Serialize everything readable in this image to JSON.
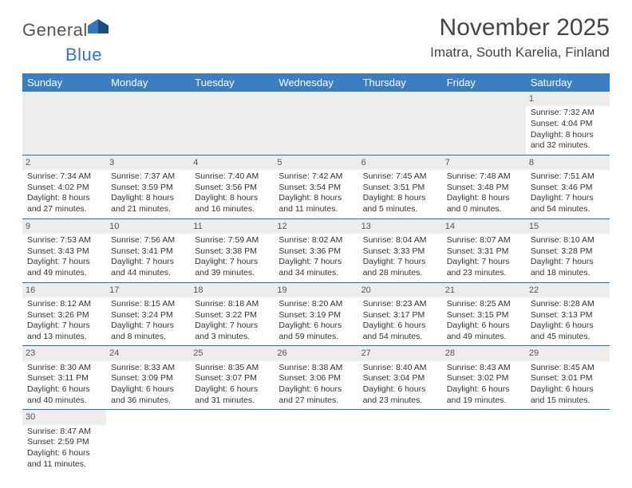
{
  "logo": {
    "text1": "General",
    "text2": "Blue"
  },
  "title": "November 2025",
  "location": "Imatra, South Karelia, Finland",
  "colors": {
    "header_bg": "#3a7fc1",
    "header_text": "#ffffff",
    "daynum_bg": "#ededed",
    "border": "#2f6ca8",
    "logo_blue": "#2f78bf"
  },
  "weekdays": [
    "Sunday",
    "Monday",
    "Tuesday",
    "Wednesday",
    "Thursday",
    "Friday",
    "Saturday"
  ],
  "weeks": [
    [
      null,
      null,
      null,
      null,
      null,
      null,
      {
        "n": "1",
        "sr": "Sunrise: 7:32 AM",
        "ss": "Sunset: 4:04 PM",
        "d1": "Daylight: 8 hours",
        "d2": "and 32 minutes."
      }
    ],
    [
      {
        "n": "2",
        "sr": "Sunrise: 7:34 AM",
        "ss": "Sunset: 4:02 PM",
        "d1": "Daylight: 8 hours",
        "d2": "and 27 minutes."
      },
      {
        "n": "3",
        "sr": "Sunrise: 7:37 AM",
        "ss": "Sunset: 3:59 PM",
        "d1": "Daylight: 8 hours",
        "d2": "and 21 minutes."
      },
      {
        "n": "4",
        "sr": "Sunrise: 7:40 AM",
        "ss": "Sunset: 3:56 PM",
        "d1": "Daylight: 8 hours",
        "d2": "and 16 minutes."
      },
      {
        "n": "5",
        "sr": "Sunrise: 7:42 AM",
        "ss": "Sunset: 3:54 PM",
        "d1": "Daylight: 8 hours",
        "d2": "and 11 minutes."
      },
      {
        "n": "6",
        "sr": "Sunrise: 7:45 AM",
        "ss": "Sunset: 3:51 PM",
        "d1": "Daylight: 8 hours",
        "d2": "and 5 minutes."
      },
      {
        "n": "7",
        "sr": "Sunrise: 7:48 AM",
        "ss": "Sunset: 3:48 PM",
        "d1": "Daylight: 8 hours",
        "d2": "and 0 minutes."
      },
      {
        "n": "8",
        "sr": "Sunrise: 7:51 AM",
        "ss": "Sunset: 3:46 PM",
        "d1": "Daylight: 7 hours",
        "d2": "and 54 minutes."
      }
    ],
    [
      {
        "n": "9",
        "sr": "Sunrise: 7:53 AM",
        "ss": "Sunset: 3:43 PM",
        "d1": "Daylight: 7 hours",
        "d2": "and 49 minutes."
      },
      {
        "n": "10",
        "sr": "Sunrise: 7:56 AM",
        "ss": "Sunset: 3:41 PM",
        "d1": "Daylight: 7 hours",
        "d2": "and 44 minutes."
      },
      {
        "n": "11",
        "sr": "Sunrise: 7:59 AM",
        "ss": "Sunset: 3:38 PM",
        "d1": "Daylight: 7 hours",
        "d2": "and 39 minutes."
      },
      {
        "n": "12",
        "sr": "Sunrise: 8:02 AM",
        "ss": "Sunset: 3:36 PM",
        "d1": "Daylight: 7 hours",
        "d2": "and 34 minutes."
      },
      {
        "n": "13",
        "sr": "Sunrise: 8:04 AM",
        "ss": "Sunset: 3:33 PM",
        "d1": "Daylight: 7 hours",
        "d2": "and 28 minutes."
      },
      {
        "n": "14",
        "sr": "Sunrise: 8:07 AM",
        "ss": "Sunset: 3:31 PM",
        "d1": "Daylight: 7 hours",
        "d2": "and 23 minutes."
      },
      {
        "n": "15",
        "sr": "Sunrise: 8:10 AM",
        "ss": "Sunset: 3:28 PM",
        "d1": "Daylight: 7 hours",
        "d2": "and 18 minutes."
      }
    ],
    [
      {
        "n": "16",
        "sr": "Sunrise: 8:12 AM",
        "ss": "Sunset: 3:26 PM",
        "d1": "Daylight: 7 hours",
        "d2": "and 13 minutes."
      },
      {
        "n": "17",
        "sr": "Sunrise: 8:15 AM",
        "ss": "Sunset: 3:24 PM",
        "d1": "Daylight: 7 hours",
        "d2": "and 8 minutes."
      },
      {
        "n": "18",
        "sr": "Sunrise: 8:18 AM",
        "ss": "Sunset: 3:22 PM",
        "d1": "Daylight: 7 hours",
        "d2": "and 3 minutes."
      },
      {
        "n": "19",
        "sr": "Sunrise: 8:20 AM",
        "ss": "Sunset: 3:19 PM",
        "d1": "Daylight: 6 hours",
        "d2": "and 59 minutes."
      },
      {
        "n": "20",
        "sr": "Sunrise: 8:23 AM",
        "ss": "Sunset: 3:17 PM",
        "d1": "Daylight: 6 hours",
        "d2": "and 54 minutes."
      },
      {
        "n": "21",
        "sr": "Sunrise: 8:25 AM",
        "ss": "Sunset: 3:15 PM",
        "d1": "Daylight: 6 hours",
        "d2": "and 49 minutes."
      },
      {
        "n": "22",
        "sr": "Sunrise: 8:28 AM",
        "ss": "Sunset: 3:13 PM",
        "d1": "Daylight: 6 hours",
        "d2": "and 45 minutes."
      }
    ],
    [
      {
        "n": "23",
        "sr": "Sunrise: 8:30 AM",
        "ss": "Sunset: 3:11 PM",
        "d1": "Daylight: 6 hours",
        "d2": "and 40 minutes."
      },
      {
        "n": "24",
        "sr": "Sunrise: 8:33 AM",
        "ss": "Sunset: 3:09 PM",
        "d1": "Daylight: 6 hours",
        "d2": "and 36 minutes."
      },
      {
        "n": "25",
        "sr": "Sunrise: 8:35 AM",
        "ss": "Sunset: 3:07 PM",
        "d1": "Daylight: 6 hours",
        "d2": "and 31 minutes."
      },
      {
        "n": "26",
        "sr": "Sunrise: 8:38 AM",
        "ss": "Sunset: 3:06 PM",
        "d1": "Daylight: 6 hours",
        "d2": "and 27 minutes."
      },
      {
        "n": "27",
        "sr": "Sunrise: 8:40 AM",
        "ss": "Sunset: 3:04 PM",
        "d1": "Daylight: 6 hours",
        "d2": "and 23 minutes."
      },
      {
        "n": "28",
        "sr": "Sunrise: 8:43 AM",
        "ss": "Sunset: 3:02 PM",
        "d1": "Daylight: 6 hours",
        "d2": "and 19 minutes."
      },
      {
        "n": "29",
        "sr": "Sunrise: 8:45 AM",
        "ss": "Sunset: 3:01 PM",
        "d1": "Daylight: 6 hours",
        "d2": "and 15 minutes."
      }
    ],
    [
      {
        "n": "30",
        "sr": "Sunrise: 8:47 AM",
        "ss": "Sunset: 2:59 PM",
        "d1": "Daylight: 6 hours",
        "d2": "and 11 minutes."
      },
      null,
      null,
      null,
      null,
      null,
      null
    ]
  ]
}
